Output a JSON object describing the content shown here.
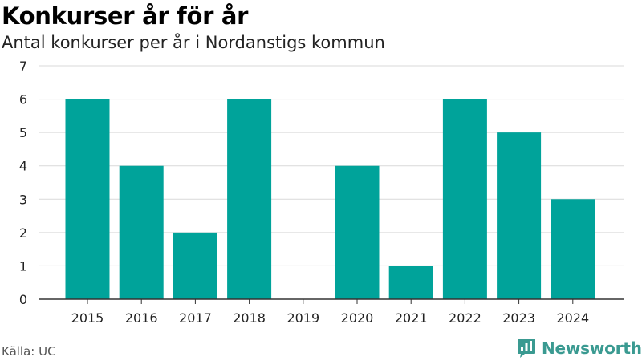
{
  "title": "Konkurser år för år",
  "subtitle": "Antal konkurser per år i Nordanstigs kommun",
  "source": "Källa: UC",
  "brand": {
    "name": "Newsworthy",
    "icon": "newsworthy-logo-icon"
  },
  "colors": {
    "bar": "#00a39a",
    "grid": "#d9d9d9",
    "axis": "#333333",
    "brand": "#3a9a91"
  },
  "chart_data": {
    "type": "bar",
    "title": "Konkurser år för år",
    "subtitle": "Antal konkurser per år i Nordanstigs kommun",
    "xlabel": "",
    "ylabel": "",
    "categories": [
      "2015",
      "2016",
      "2017",
      "2018",
      "2019",
      "2020",
      "2021",
      "2022",
      "2023",
      "2024"
    ],
    "values": [
      6,
      4,
      2,
      6,
      0,
      4,
      1,
      6,
      5,
      3
    ],
    "ylim": [
      0,
      7
    ],
    "yticks": [
      0,
      1,
      2,
      3,
      4,
      5,
      6,
      7
    ],
    "grid": true,
    "legend": "none"
  }
}
